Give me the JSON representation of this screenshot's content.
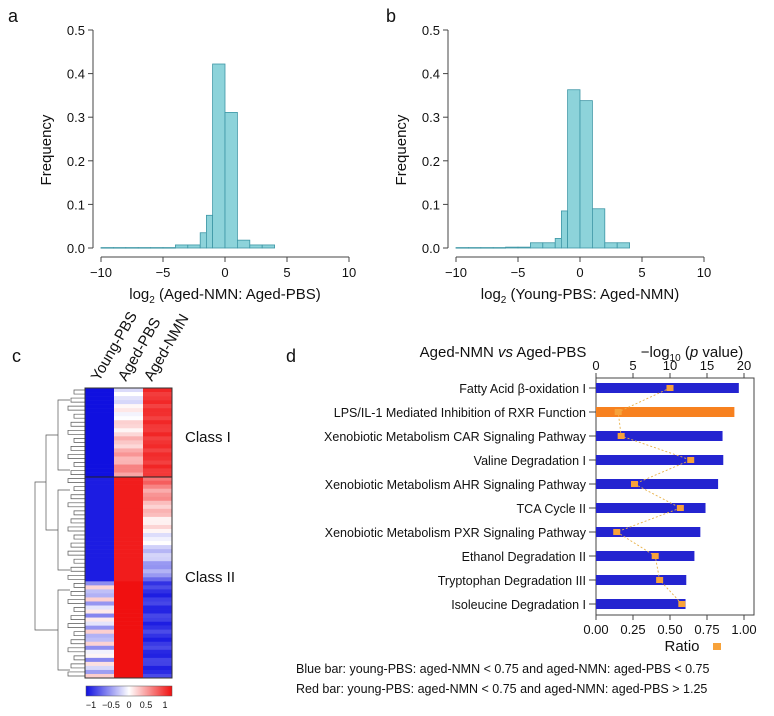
{
  "colors": {
    "hist_fill": "#8dd3da",
    "hist_stroke": "#3e97a6",
    "heat_low": "#1010e0",
    "heat_mid": "#ffffff",
    "heat_high": "#f01010",
    "bar_blue": "#2424d0",
    "bar_red": "#f7811f",
    "ratio_marker": "#f7a23a",
    "ratio_line": "#e9b24a"
  },
  "panel_labels": {
    "a": "a",
    "b": "b",
    "c": "c",
    "d": "d"
  },
  "chart_data": [
    {
      "id": "a",
      "type": "bar",
      "subtype": "histogram",
      "xlabel_prefix": "log",
      "xlabel_sub": "2",
      "xlabel_rest": " (Aged-NMN: Aged-PBS)",
      "ylabel": "Frequency",
      "xlim": [
        -10,
        10
      ],
      "ylim": [
        0,
        0.5
      ],
      "xticks": [
        -10,
        -5,
        0,
        5,
        10
      ],
      "xtick_labels": [
        "−10",
        "−5",
        "0",
        "5",
        "10"
      ],
      "yticks": [
        "0.0",
        "0.1",
        "0.2",
        "0.3",
        "0.4",
        "0.5"
      ],
      "bin_width": 1,
      "bins": [
        {
          "start": -10,
          "value": 0.001
        },
        {
          "start": -9,
          "value": 0.001
        },
        {
          "start": -8,
          "value": 0.001
        },
        {
          "start": -7,
          "value": 0.001
        },
        {
          "start": -6,
          "value": 0.001
        },
        {
          "start": -5,
          "value": 0.001
        },
        {
          "start": -4,
          "value": 0.007
        },
        {
          "start": -3,
          "value": 0.007
        },
        {
          "start": -2,
          "value": 0.035
        },
        {
          "start": -1.5,
          "value": 0.075
        },
        {
          "start": -1,
          "value": 0.422
        },
        {
          "start": 0,
          "value": 0.311
        },
        {
          "start": 1,
          "value": 0.018
        },
        {
          "start": 2,
          "value": 0.007
        },
        {
          "start": 3,
          "value": 0.007
        }
      ]
    },
    {
      "id": "b",
      "type": "bar",
      "subtype": "histogram",
      "xlabel_prefix": "log",
      "xlabel_sub": "2",
      "xlabel_rest": " (Young-PBS: Aged-NMN)",
      "ylabel": "Frequency",
      "xlim": [
        -10,
        10
      ],
      "ylim": [
        0,
        0.5
      ],
      "xticks": [
        -10,
        -5,
        0,
        5,
        10
      ],
      "xtick_labels": [
        "−10",
        "−5",
        "0",
        "5",
        "10"
      ],
      "yticks": [
        "0.0",
        "0.1",
        "0.2",
        "0.3",
        "0.4",
        "0.5"
      ],
      "bin_width": 1,
      "bins": [
        {
          "start": -10,
          "value": 0.001
        },
        {
          "start": -9,
          "value": 0.001
        },
        {
          "start": -8,
          "value": 0.001
        },
        {
          "start": -7,
          "value": 0.001
        },
        {
          "start": -6,
          "value": 0.002
        },
        {
          "start": -5,
          "value": 0.002
        },
        {
          "start": -4,
          "value": 0.012
        },
        {
          "start": -3,
          "value": 0.012
        },
        {
          "start": -2,
          "value": 0.022
        },
        {
          "start": -1.5,
          "value": 0.085
        },
        {
          "start": -1,
          "value": 0.363
        },
        {
          "start": 0,
          "value": 0.338
        },
        {
          "start": 1,
          "value": 0.09
        },
        {
          "start": 2,
          "value": 0.012
        },
        {
          "start": 3,
          "value": 0.012
        }
      ]
    },
    {
      "id": "c",
      "type": "heatmap",
      "columns": [
        "Young-PBS",
        "Aged-PBS",
        "Aged-NMN"
      ],
      "row_groups": [
        "Class I",
        "Class II"
      ],
      "value_range": [
        -1,
        1
      ],
      "colorbar_labels": [
        "−1",
        "−0.5",
        "0",
        "0.5",
        "1"
      ]
    },
    {
      "id": "d",
      "type": "bar",
      "orientation": "horizontal",
      "title_left": "Aged-NMN",
      "title_vs": "vs",
      "title_right": "Aged-PBS",
      "top_axis_label_prefix": "−log",
      "top_axis_label_sub": "10",
      "top_axis_label_open": " (",
      "top_axis_label_p": "p",
      "top_axis_label_close": " value)",
      "top_axis_range": [
        0,
        20
      ],
      "top_axis_ticks": [
        "0",
        "5",
        "10",
        "15",
        "20"
      ],
      "bottom_axis_range": [
        0,
        1
      ],
      "bottom_axis_ticks": [
        "0.00",
        "0.25",
        "0.50",
        "0.75",
        "1.00"
      ],
      "bottom_axis_label": "Ratio",
      "categories": [
        "Fatty Acid β-oxidation I",
        "LPS/IL-1 Mediated Inhibition of RXR Function",
        "Xenobiotic Metabolism CAR Signaling Pathway",
        "Valine Degradation I",
        "Xenobiotic Metabolism AHR Signaling Pathway",
        "TCA Cycle II",
        "Xenobiotic Metabolism PXR Signaling Pathway",
        "Ethanol Degradation II",
        "Tryptophan Degradation III",
        "Isoleucine Degradation I"
      ],
      "neg_log10_p": [
        19.3,
        18.7,
        17.1,
        17.2,
        16.5,
        14.8,
        14.1,
        13.3,
        12.2,
        12.1
      ],
      "bar_colors": [
        "blue",
        "red",
        "blue",
        "blue",
        "blue",
        "blue",
        "blue",
        "blue",
        "blue",
        "blue"
      ],
      "ratio": [
        0.5,
        0.15,
        0.17,
        0.64,
        0.26,
        0.57,
        0.14,
        0.4,
        0.43,
        0.58
      ],
      "notes": [
        "Blue bar: young-PBS: aged-NMN < 0.75 and aged-NMN: aged-PBS < 0.75",
        "Red bar: young-PBS: aged-NMN < 0.75 and aged-NMN: aged-PBS > 1.25"
      ]
    }
  ]
}
